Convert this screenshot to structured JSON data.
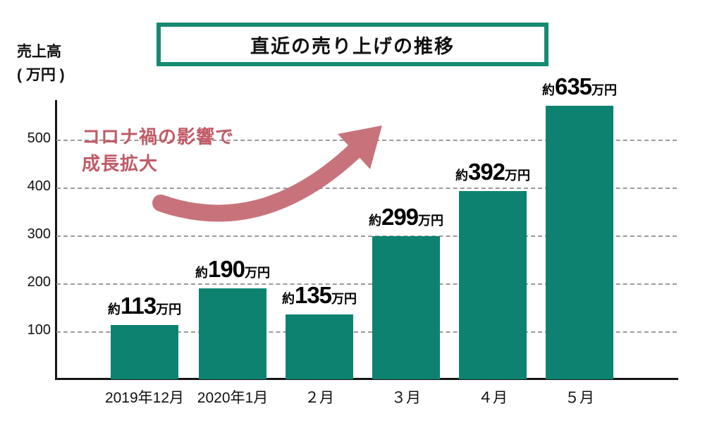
{
  "chart_data": {
    "type": "bar",
    "title": "直近の売り上げの推移",
    "ylabel_lines": [
      "売上高",
      "( 万円 )"
    ],
    "categories": [
      "2019年12月",
      "2020年1月",
      "２月",
      "３月",
      "４月",
      "５月"
    ],
    "values": [
      113,
      190,
      135,
      299,
      392,
      635
    ],
    "value_label_prefix": "約",
    "value_label_suffix": "万円",
    "yticks": [
      100,
      200,
      300,
      400,
      500
    ],
    "ylim": [
      0,
      570
    ],
    "grid": "horizontal-dashed",
    "legend": "none",
    "bar_color": "#0e8270",
    "axis_color": "#151515",
    "title_border_color": "#178a72",
    "annotation": {
      "lines": [
        "コロナ禍の影響で",
        "成長拡大"
      ],
      "color": "#c05b66",
      "arrow_color": "#c8737b",
      "arrow": "curved-up-right"
    }
  }
}
